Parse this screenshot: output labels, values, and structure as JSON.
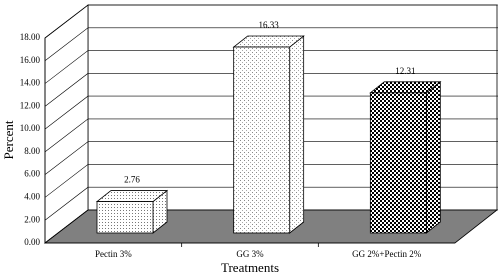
{
  "chart_data": {
    "type": "bar3d",
    "categories": [
      "Pectin 3%",
      "GG 3%",
      "GG 2%+Pectin 2%"
    ],
    "values": [
      2.76,
      16.33,
      12.31
    ],
    "x_label": "Treatments",
    "y_label": "Percent",
    "ylim": [
      0,
      18
    ],
    "yticks": [
      {
        "value": 0,
        "label": "0.00"
      },
      {
        "value": 2,
        "label": "2.00"
      },
      {
        "value": 4,
        "label": "4.00"
      },
      {
        "value": 6,
        "label": "6.00"
      },
      {
        "value": 8,
        "label": "8.00"
      },
      {
        "value": 10,
        "label": "10.00"
      },
      {
        "value": 12,
        "label": "12.00"
      },
      {
        "value": 14,
        "label": "14.00"
      },
      {
        "value": 16,
        "label": "16.00"
      },
      {
        "value": 18,
        "label": "18.00"
      }
    ],
    "grid": true
  }
}
